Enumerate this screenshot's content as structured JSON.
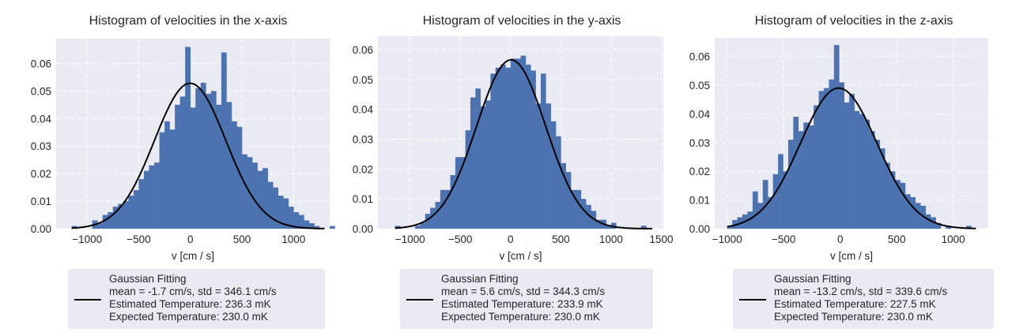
{
  "chart_data": [
    {
      "type": "bar",
      "title": "Histogram of velocities in the x-axis",
      "xlabel": "v [cm / s]",
      "ylabel": "",
      "xlim": [
        -1300,
        1350
      ],
      "ylim": [
        0,
        0.069
      ],
      "xticks": [
        -1000,
        -500,
        0,
        500,
        1000
      ],
      "yticks": [
        0.0,
        0.01,
        0.02,
        0.03,
        0.04,
        0.05,
        0.06
      ],
      "ytick_labels": [
        "0.00",
        "0.01",
        "0.02",
        "0.03",
        "0.04",
        "0.05",
        "0.06"
      ],
      "grid": true,
      "bin_width": 50,
      "bin_start": -1150,
      "values": [
        0.001,
        0,
        0,
        0,
        0.003,
        0.002,
        0.005,
        0.006,
        0.008,
        0.009,
        0.01,
        0.012,
        0.014,
        0.018,
        0.021,
        0.023,
        0.024,
        0.035,
        0.039,
        0.036,
        0.045,
        0.048,
        0.066,
        0.044,
        0.051,
        0.053,
        0.049,
        0.05,
        0.045,
        0.064,
        0.046,
        0.039,
        0.037,
        0.027,
        0.026,
        0.024,
        0.021,
        0.022,
        0.017,
        0.015,
        0.012,
        0.011,
        0.008,
        0.006,
        0.005,
        0.003,
        0.002,
        0.001,
        0,
        0,
        0.001
      ],
      "fit": {
        "mean": -1.7,
        "std": 346.1,
        "peak": 0.0528,
        "x_range": [
          -1150,
          1300
        ]
      },
      "legend": {
        "position": "below",
        "lines": [
          "Gaussian Fitting",
          "mean = -1.7 cm/s, std = 346.1 cm/s",
          "Estimated Temperature: 236.3 mK",
          "Expected Temperature: 230.0 mK"
        ]
      }
    },
    {
      "type": "bar",
      "title": "Histogram of velocities in the y-axis",
      "xlabel": "v [cm / s]",
      "ylabel": "",
      "xlim": [
        -1320,
        1520
      ],
      "ylim": [
        0,
        0.0645
      ],
      "xticks": [
        -1000,
        -500,
        0,
        500,
        1000,
        1500
      ],
      "yticks": [
        0.0,
        0.01,
        0.02,
        0.03,
        0.04,
        0.05,
        0.06
      ],
      "ytick_labels": [
        "0.00",
        "0.01",
        "0.02",
        "0.03",
        "0.04",
        "0.05",
        "0.06"
      ],
      "grid": true,
      "bin_width": 50,
      "bin_start": -1150,
      "values": [
        0.001,
        0,
        0,
        0,
        0.001,
        0.002,
        0.005,
        0.007,
        0.009,
        0.013,
        0.013,
        0.018,
        0.024,
        0.024,
        0.033,
        0.044,
        0.047,
        0.041,
        0.043,
        0.052,
        0.054,
        0.055,
        0.054,
        0.057,
        0.057,
        0.058,
        0.055,
        0.053,
        0.042,
        0.052,
        0.042,
        0.036,
        0.031,
        0.022,
        0.019,
        0.013,
        0.013,
        0.01,
        0.008,
        0.006,
        0.003,
        0.003,
        0.001,
        0.002,
        0,
        0,
        0,
        0,
        0,
        0.001
      ],
      "fit": {
        "mean": 5.6,
        "std": 344.3,
        "peak": 0.0566,
        "x_range": [
          -1150,
          1410
        ]
      },
      "legend": {
        "position": "below",
        "lines": [
          "Gaussian Fitting",
          "mean = 5.6 cm/s, std = 344.3 cm/s",
          "Estimated Temperature: 233.9 mK",
          "Expected Temperature: 230.0 mK"
        ]
      }
    },
    {
      "type": "bar",
      "title": "Histogram of velocities in the z-axis",
      "xlabel": "v [cm / s]",
      "ylabel": "",
      "xlim": [
        -1110,
        1310
      ],
      "ylim": [
        0,
        0.0665
      ],
      "xticks": [
        -1000,
        -500,
        0,
        500,
        1000
      ],
      "yticks": [
        0.0,
        0.01,
        0.02,
        0.03,
        0.04,
        0.05,
        0.06
      ],
      "ytick_labels": [
        "0.00",
        "0.01",
        "0.02",
        "0.03",
        "0.04",
        "0.05",
        "0.06"
      ],
      "grid": true,
      "bin_width": 45,
      "bin_start": -1000,
      "values": [
        0.001,
        0.003,
        0.004,
        0.005,
        0.006,
        0.013,
        0.009,
        0.017,
        0.011,
        0.019,
        0.026,
        0.02,
        0.031,
        0.039,
        0.034,
        0.037,
        0.036,
        0.043,
        0.048,
        0.049,
        0.052,
        0.064,
        0.051,
        0.044,
        0.047,
        0.041,
        0.04,
        0.038,
        0.034,
        0.031,
        0.028,
        0.023,
        0.02,
        0.017,
        0.016,
        0.012,
        0.011,
        0.009,
        0.008,
        0.005,
        0.004,
        0.002,
        0,
        0.001,
        0,
        0,
        0,
        0.001
      ],
      "fit": {
        "mean": -13.2,
        "std": 339.6,
        "peak": 0.049,
        "x_range": [
          -1000,
          1200
        ]
      },
      "legend": {
        "position": "below",
        "lines": [
          "Gaussian Fitting",
          "mean = -13.2 cm/s, std = 339.6 cm/s",
          "Estimated Temperature: 227.5 mK",
          "Expected Temperature: 230.0 mK"
        ]
      }
    }
  ],
  "colors": {
    "bar": "#4c72b0",
    "fit_line": "#000000",
    "axes_bg": "#eaeaf2",
    "grid": "#ffffff",
    "legend_bg": "#eaeaf2",
    "text": "#262626"
  }
}
